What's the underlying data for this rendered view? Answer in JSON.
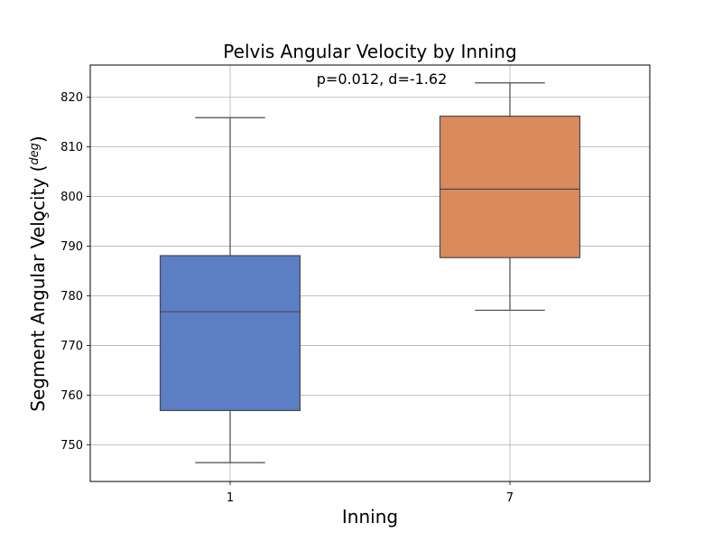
{
  "chart_data": {
    "type": "box",
    "title": "Pelvis Angular Velocity by Inning",
    "xlabel": "Inning",
    "ylabel": "Segment Angular Velocity (",
    "ylabel_unit_num": "deg",
    "ylabel_unit_den": "s",
    "ylabel_close": ")",
    "annotation": "p=0.012, d=-1.62",
    "categories": [
      "1",
      "7"
    ],
    "series": [
      {
        "category": "1",
        "whisker_low": 746.4,
        "q1": 756.9,
        "median": 776.8,
        "q3": 788.1,
        "whisker_high": 815.9,
        "color": "#5b7ec4"
      },
      {
        "category": "7",
        "whisker_low": 777.1,
        "q1": 787.7,
        "median": 801.5,
        "q3": 816.2,
        "whisker_high": 822.9,
        "color": "#d98b5e"
      }
    ],
    "ylim": [
      742.6,
      826.5
    ],
    "yticks": [
      750,
      760,
      770,
      780,
      790,
      800,
      810,
      820
    ],
    "grid": true,
    "stroke_color": "#4a4a4a"
  }
}
